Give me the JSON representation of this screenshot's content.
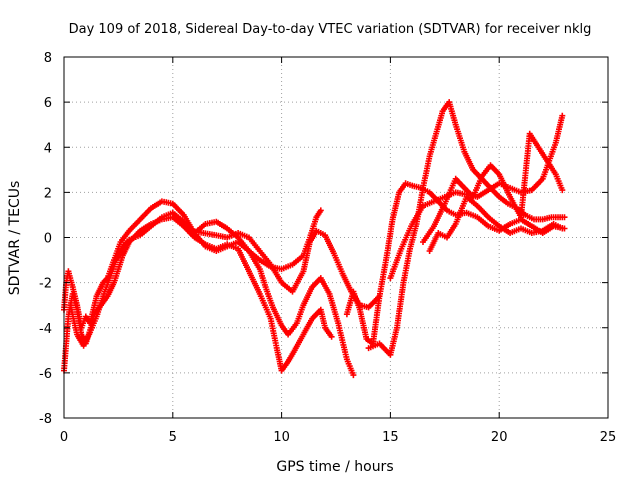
{
  "chart_data": {
    "type": "scatter",
    "title": "Day 109 of 2018, Sidereal Day-to-day VTEC variation (SDTVAR) for receiver nklg",
    "xlabel": "GPS time / hours",
    "ylabel": "SDTVAR / TECUs",
    "xlim": [
      0,
      25
    ],
    "ylim": [
      -8,
      8
    ],
    "x_ticks": [
      "0",
      "5",
      "10",
      "15",
      "20",
      "25"
    ],
    "y_ticks": [
      "-8",
      "-6",
      "-4",
      "-2",
      "0",
      "2",
      "4",
      "6",
      "8"
    ],
    "grid": true,
    "marker": "plus",
    "color": "#ff0000",
    "series": [
      {
        "x": [
          0.0,
          0.1,
          0.2,
          0.4,
          0.6,
          0.8,
          1.0,
          1.2,
          1.5,
          1.8,
          2.0,
          2.3,
          2.6,
          3.0,
          3.5,
          4.0,
          4.5,
          5.0,
          5.5,
          6.0,
          6.5,
          7.0,
          7.5,
          8.0,
          8.5,
          9.0,
          9.5,
          10.0,
          10.5,
          11.0,
          11.3,
          11.6,
          11.8
        ],
        "y": [
          -3.2,
          -2.0,
          -1.5,
          -2.2,
          -3.0,
          -4.0,
          -3.5,
          -3.8,
          -2.6,
          -2.0,
          -1.8,
          -1.0,
          -0.2,
          0.3,
          0.8,
          1.3,
          1.6,
          1.5,
          1.0,
          0.2,
          -0.4,
          -0.6,
          -0.4,
          -0.2,
          -0.6,
          -1.0,
          -1.3,
          -1.4,
          -1.2,
          -0.8,
          0.0,
          0.9,
          1.2
        ]
      },
      {
        "x": [
          0.0,
          0.2,
          0.4,
          0.6,
          0.8,
          1.0,
          1.2,
          1.4,
          1.7,
          2.0,
          2.3,
          2.7,
          3.0,
          3.5,
          4.0,
          4.5,
          5.0,
          5.5,
          6.0,
          6.5,
          7.0,
          7.5,
          8.0,
          8.5,
          9.0,
          9.5,
          9.8,
          10.0,
          10.3,
          10.6,
          11.0,
          11.4,
          11.8,
          12.0,
          12.3
        ],
        "y": [
          -5.9,
          -3.5,
          -2.5,
          -3.2,
          -4.3,
          -4.7,
          -4.1,
          -3.4,
          -3.0,
          -2.6,
          -2.0,
          -0.8,
          -0.2,
          0.3,
          0.6,
          0.8,
          0.9,
          0.5,
          0.0,
          -0.3,
          -0.5,
          -0.3,
          -0.5,
          -1.5,
          -2.5,
          -3.6,
          -5.0,
          -5.9,
          -5.5,
          -5.0,
          -4.3,
          -3.6,
          -3.2,
          -4.0,
          -4.4
        ]
      },
      {
        "x": [
          0.3,
          0.6,
          0.9,
          1.2,
          1.5,
          1.8,
          2.1,
          2.4,
          2.7,
          3.0,
          3.5,
          4.0,
          4.5,
          5.0,
          5.5,
          6.0,
          6.5,
          7.0,
          7.5,
          8.0,
          8.5,
          9.0,
          9.3,
          9.6,
          10.0,
          10.3,
          10.7,
          11.0,
          11.4,
          11.8,
          12.2,
          12.6,
          13.0,
          13.3
        ],
        "y": [
          -3.0,
          -4.3,
          -4.8,
          -4.2,
          -3.5,
          -2.6,
          -1.8,
          -1.0,
          -0.4,
          -0.1,
          0.1,
          0.5,
          0.9,
          1.1,
          0.7,
          0.2,
          0.6,
          0.7,
          0.4,
          0.0,
          -0.6,
          -1.4,
          -2.3,
          -3.1,
          -3.9,
          -4.3,
          -3.8,
          -3.0,
          -2.2,
          -1.8,
          -2.5,
          -3.8,
          -5.4,
          -6.1
        ]
      },
      {
        "x": [
          5.8,
          6.4,
          7.0,
          7.5,
          8.0,
          8.5,
          9.0,
          9.5,
          10.0,
          10.5,
          11.0,
          11.3,
          11.6,
          12.0,
          12.4,
          12.8,
          13.2,
          13.6,
          14.0,
          14.5
        ],
        "y": [
          0.3,
          0.2,
          0.1,
          0.0,
          0.2,
          0.0,
          -0.6,
          -1.2,
          -2.0,
          -2.4,
          -1.5,
          -0.2,
          0.3,
          0.1,
          -0.7,
          -1.6,
          -2.4,
          -3.0,
          -3.1,
          -2.6
        ]
      },
      {
        "x": [
          13.0,
          13.3,
          13.6,
          13.9,
          14.2,
          14.5,
          14.8,
          15.1,
          15.4,
          15.7,
          16.0,
          16.4,
          16.8,
          17.2,
          17.6,
          18.0,
          18.5,
          19.0,
          19.5,
          20.0,
          20.5,
          21.0,
          21.5,
          22.0,
          22.5,
          23.0
        ],
        "y": [
          -3.4,
          -2.4,
          -3.2,
          -4.5,
          -4.7,
          -2.6,
          -1.0,
          0.8,
          2.0,
          2.4,
          2.3,
          2.2,
          2.0,
          1.6,
          1.2,
          1.0,
          1.1,
          0.9,
          0.5,
          0.3,
          0.6,
          0.8,
          0.5,
          0.2,
          0.5,
          0.4
        ]
      },
      {
        "x": [
          14.0,
          14.5,
          15.0,
          15.3,
          15.6,
          15.9,
          16.2,
          16.5,
          16.8,
          17.1,
          17.4,
          17.7,
          18.0,
          18.4,
          18.8,
          19.2,
          19.6,
          20.0,
          20.4,
          20.8,
          21.2,
          21.6,
          22.0,
          22.4,
          22.8,
          23.0
        ],
        "y": [
          -4.9,
          -4.7,
          -5.2,
          -4.0,
          -2.0,
          -0.5,
          0.6,
          2.2,
          3.6,
          4.6,
          5.6,
          6.0,
          5.0,
          3.8,
          3.0,
          2.6,
          2.2,
          1.8,
          1.5,
          1.3,
          1.0,
          0.8,
          0.8,
          0.9,
          0.9,
          0.9
        ]
      },
      {
        "x": [
          15.0,
          15.5,
          16.0,
          16.5,
          17.0,
          17.5,
          18.0,
          18.5,
          19.0,
          19.5,
          20.0,
          20.5,
          21.0,
          21.5,
          22.0,
          22.3,
          22.6,
          22.9
        ],
        "y": [
          -1.8,
          -0.5,
          0.6,
          1.4,
          1.6,
          1.8,
          2.0,
          1.9,
          1.8,
          2.1,
          2.4,
          2.2,
          2.0,
          2.1,
          2.6,
          3.4,
          4.2,
          5.4
        ]
      },
      {
        "x": [
          16.5,
          17.0,
          17.5,
          18.0,
          18.4,
          18.8,
          19.2,
          19.6,
          20.0,
          20.5,
          21.0,
          21.4,
          21.8,
          22.2,
          22.6,
          22.9
        ],
        "y": [
          -0.2,
          0.5,
          1.5,
          2.6,
          2.2,
          1.8,
          2.7,
          3.2,
          2.8,
          1.8,
          0.9,
          4.6,
          4.0,
          3.4,
          2.8,
          2.1
        ]
      },
      {
        "x": [
          16.8,
          17.2,
          17.6,
          18.0,
          18.5,
          19.0,
          19.5,
          20.0,
          20.5,
          21.0,
          21.5,
          22.0,
          22.5,
          22.9
        ],
        "y": [
          -0.6,
          0.2,
          0.0,
          0.6,
          1.8,
          1.4,
          0.9,
          0.5,
          0.2,
          0.4,
          0.2,
          0.3,
          0.6,
          0.4
        ]
      }
    ]
  }
}
